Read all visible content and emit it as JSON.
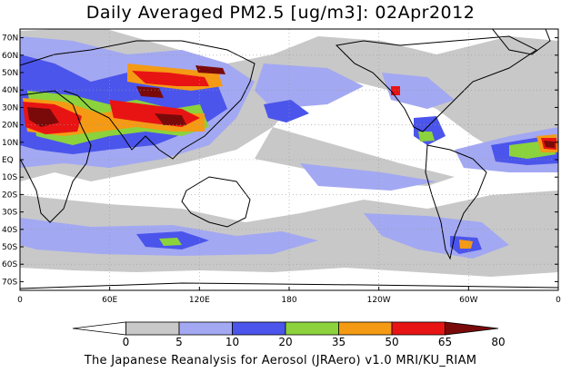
{
  "title": "Daily Averaged PM2.5 [ug/m3]: 02Apr2012",
  "credit": "The Japanese Reanalysis for Aerosol (JRAero) v1.0 MRI/KU_RIAM",
  "map": {
    "lon_min": 0,
    "lon_max": 360,
    "lat_min": -75,
    "lat_max": 75,
    "lat_ticks": [
      {
        "lat": 70,
        "label": "70N"
      },
      {
        "lat": 60,
        "label": "60N"
      },
      {
        "lat": 50,
        "label": "50N"
      },
      {
        "lat": 40,
        "label": "40N"
      },
      {
        "lat": 30,
        "label": "30N"
      },
      {
        "lat": 20,
        "label": "20N"
      },
      {
        "lat": 10,
        "label": "10N"
      },
      {
        "lat": 0,
        "label": "EQ"
      },
      {
        "lat": -10,
        "label": "10S"
      },
      {
        "lat": -20,
        "label": "20S"
      },
      {
        "lat": -30,
        "label": "30S"
      },
      {
        "lat": -40,
        "label": "40S"
      },
      {
        "lat": -50,
        "label": "50S"
      },
      {
        "lat": -60,
        "label": "60S"
      },
      {
        "lat": -70,
        "label": "70S"
      }
    ],
    "lon_ticks": [
      {
        "lon": 0,
        "label": "0"
      },
      {
        "lon": 60,
        "label": "60E"
      },
      {
        "lon": 120,
        "label": "120E"
      },
      {
        "lon": 180,
        "label": "180"
      },
      {
        "lon": 240,
        "label": "120W"
      },
      {
        "lon": 300,
        "label": "60W"
      },
      {
        "lon": 360,
        "label": "0"
      }
    ]
  },
  "colorbar": {
    "levels": [
      "0",
      "5",
      "10",
      "20",
      "35",
      "50",
      "65",
      "80"
    ],
    "colors": [
      "#ffffff",
      "#c8c8c8",
      "#a3a8f2",
      "#4b55eb",
      "#8cd23c",
      "#f59a14",
      "#e81414",
      "#7a0a0a"
    ],
    "coastline": "#000000",
    "grid": "#999999"
  }
}
